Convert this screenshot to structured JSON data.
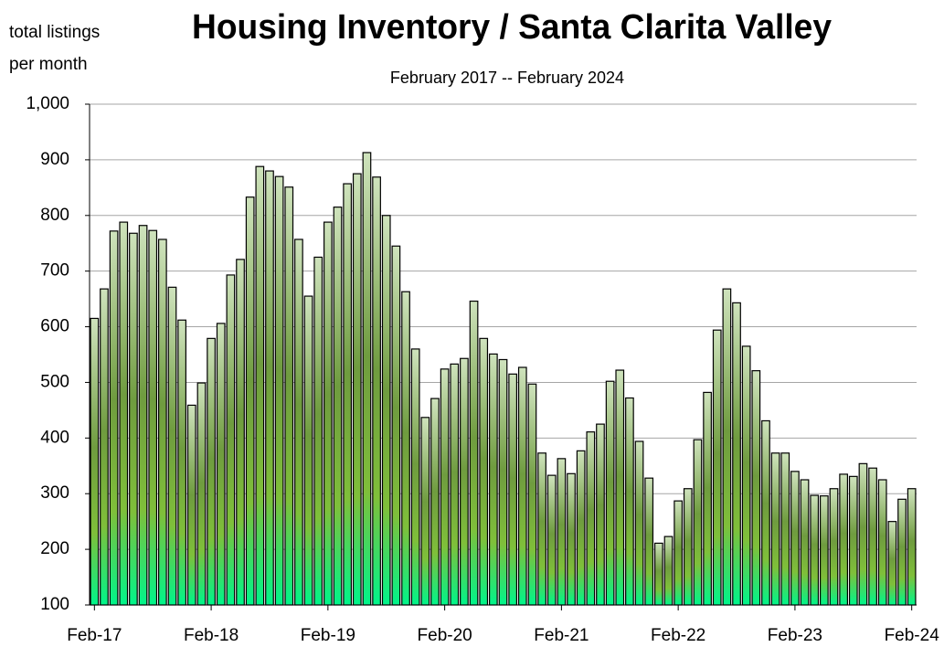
{
  "chart_data": {
    "type": "bar",
    "title": "Housing Inventory / Santa Clarita Valley",
    "subtitle": "February 2017 -- February 2024",
    "y_label": [
      "total listings",
      "per month"
    ],
    "categories": [
      "Feb-17",
      null,
      null,
      null,
      null,
      null,
      null,
      null,
      null,
      null,
      null,
      null,
      "Feb-18",
      null,
      null,
      null,
      null,
      null,
      null,
      null,
      null,
      null,
      null,
      null,
      "Feb-19",
      null,
      null,
      null,
      null,
      null,
      null,
      null,
      null,
      null,
      null,
      null,
      "Feb-20",
      null,
      null,
      null,
      null,
      null,
      null,
      null,
      null,
      null,
      null,
      null,
      "Feb-21",
      null,
      null,
      null,
      null,
      null,
      null,
      null,
      null,
      null,
      null,
      null,
      "Feb-22",
      null,
      null,
      null,
      null,
      null,
      null,
      null,
      null,
      null,
      null,
      null,
      "Feb-23",
      null,
      null,
      null,
      null,
      null,
      null,
      null,
      null,
      null,
      null,
      null,
      "Feb-24"
    ],
    "values": [
      615,
      668,
      772,
      788,
      768,
      782,
      773,
      757,
      671,
      612,
      459,
      499,
      579,
      606,
      693,
      721,
      833,
      888,
      880,
      870,
      851,
      757,
      655,
      725,
      788,
      815,
      857,
      875,
      913,
      869,
      800,
      745,
      663,
      560,
      437,
      471,
      524,
      533,
      543,
      646,
      579,
      551,
      541,
      515,
      527,
      497,
      373,
      333,
      363,
      336,
      377,
      411,
      425,
      502,
      522,
      472,
      394,
      328,
      211,
      223,
      287,
      309,
      397,
      482,
      594,
      668,
      643,
      565,
      521,
      431,
      373,
      373,
      340,
      325,
      297,
      296,
      309,
      335,
      331,
      354,
      346,
      325,
      250,
      290,
      309
    ],
    "ylim": [
      100,
      1000
    ],
    "yticks": [
      100,
      200,
      300,
      400,
      500,
      600,
      700,
      800,
      900,
      {
        "value": 1000,
        "label": "1,000"
      }
    ],
    "grid": true
  }
}
